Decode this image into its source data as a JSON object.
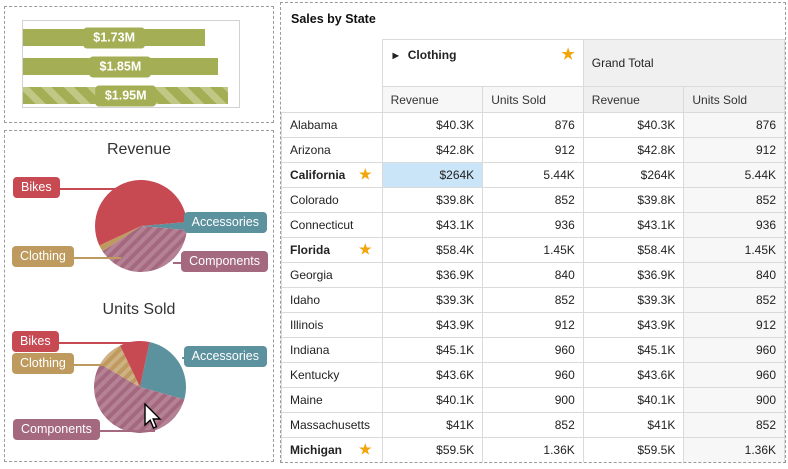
{
  "colors": {
    "olive": "#a4af55",
    "olive_hatch": "#bfc985",
    "star": "#f2a60c",
    "cell_highlight": "#cbe5f8"
  },
  "chart_data": [
    {
      "type": "bar",
      "orientation": "horizontal",
      "labels": [
        "$1.73M",
        "$1.85M",
        "$1.95M"
      ],
      "values": [
        1.73,
        1.85,
        1.95
      ],
      "unit": "$M",
      "xlim": [
        0,
        2.05
      ],
      "hatched": [
        false,
        false,
        true
      ],
      "bar_color": "#a4af55",
      "hatch_color": "#bfc985"
    },
    {
      "type": "pie",
      "title": "Revenue",
      "start_angle": 85,
      "slices": [
        {
          "label": "Accessories",
          "pct": 2.8,
          "color": "#5c919e",
          "hatched": false
        },
        {
          "label": "Components",
          "pct": 39.4,
          "color": "#a4697e",
          "hatched": true,
          "hatch_color": "#b58295"
        },
        {
          "label": "Clothing",
          "pct": 2.2,
          "color": "#be9a5e",
          "hatched": false
        },
        {
          "label": "Bikes",
          "pct": 55.6,
          "color": "#c74a53",
          "hatched": false
        }
      ]
    },
    {
      "type": "pie",
      "title": "Units Sold",
      "start_angle": 12,
      "slices": [
        {
          "label": "Accessories",
          "pct": 26,
          "color": "#5c919e",
          "hatched": false
        },
        {
          "label": "Components",
          "pct": 54,
          "color": "#a4697e",
          "hatched": true,
          "hatch_color": "#b58295"
        },
        {
          "label": "Clothing",
          "pct": 9.5,
          "color": "#be9a5e",
          "hatched": true,
          "hatch_color": "#cfb284"
        },
        {
          "label": "Bikes",
          "pct": 10.5,
          "color": "#c74a53",
          "hatched": false
        }
      ]
    }
  ],
  "table": {
    "title": "Sales by State",
    "group_clothing": "Clothing",
    "group_total": "Grand Total",
    "expand_icon": "▶",
    "star_icon": "★",
    "sub_headers": [
      "Revenue",
      "Units Sold",
      "Revenue",
      "Units Sold"
    ],
    "rows": [
      {
        "state": "Alabama",
        "bold": false,
        "star": false,
        "c_rev": "$40.3K",
        "c_units": "876",
        "t_rev": "$40.3K",
        "t_units": "876",
        "highlight": false
      },
      {
        "state": "Arizona",
        "bold": false,
        "star": false,
        "c_rev": "$42.8K",
        "c_units": "912",
        "t_rev": "$42.8K",
        "t_units": "912",
        "highlight": false
      },
      {
        "state": "California",
        "bold": true,
        "star": true,
        "c_rev": "$264K",
        "c_units": "5.44K",
        "t_rev": "$264K",
        "t_units": "5.44K",
        "highlight": true
      },
      {
        "state": "Colorado",
        "bold": false,
        "star": false,
        "c_rev": "$39.8K",
        "c_units": "852",
        "t_rev": "$39.8K",
        "t_units": "852",
        "highlight": false
      },
      {
        "state": "Connecticut",
        "bold": false,
        "star": false,
        "c_rev": "$43.1K",
        "c_units": "936",
        "t_rev": "$43.1K",
        "t_units": "936",
        "highlight": false
      },
      {
        "state": "Florida",
        "bold": true,
        "star": true,
        "c_rev": "$58.4K",
        "c_units": "1.45K",
        "t_rev": "$58.4K",
        "t_units": "1.45K",
        "highlight": false
      },
      {
        "state": "Georgia",
        "bold": false,
        "star": false,
        "c_rev": "$36.9K",
        "c_units": "840",
        "t_rev": "$36.9K",
        "t_units": "840",
        "highlight": false
      },
      {
        "state": "Idaho",
        "bold": false,
        "star": false,
        "c_rev": "$39.3K",
        "c_units": "852",
        "t_rev": "$39.3K",
        "t_units": "852",
        "highlight": false
      },
      {
        "state": "Illinois",
        "bold": false,
        "star": false,
        "c_rev": "$43.9K",
        "c_units": "912",
        "t_rev": "$43.9K",
        "t_units": "912",
        "highlight": false
      },
      {
        "state": "Indiana",
        "bold": false,
        "star": false,
        "c_rev": "$45.1K",
        "c_units": "960",
        "t_rev": "$45.1K",
        "t_units": "960",
        "highlight": false
      },
      {
        "state": "Kentucky",
        "bold": false,
        "star": false,
        "c_rev": "$43.6K",
        "c_units": "960",
        "t_rev": "$43.6K",
        "t_units": "960",
        "highlight": false
      },
      {
        "state": "Maine",
        "bold": false,
        "star": false,
        "c_rev": "$40.1K",
        "c_units": "900",
        "t_rev": "$40.1K",
        "t_units": "900",
        "highlight": false
      },
      {
        "state": "Massachusetts",
        "bold": false,
        "star": false,
        "c_rev": "$41K",
        "c_units": "852",
        "t_rev": "$41K",
        "t_units": "852",
        "highlight": false
      },
      {
        "state": "Michigan",
        "bold": true,
        "star": true,
        "c_rev": "$59.5K",
        "c_units": "1.36K",
        "t_rev": "$59.5K",
        "t_units": "1.36K",
        "highlight": false
      }
    ]
  }
}
